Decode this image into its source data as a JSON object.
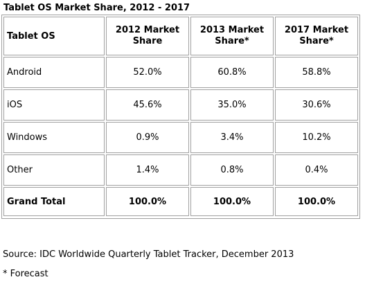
{
  "title": "Tablet OS Market Share, 2012 - 2017",
  "table": {
    "headers": [
      "Tablet OS",
      "2012 Market Share",
      "2013 Market Share*",
      "2017 Market Share*"
    ],
    "rows": [
      [
        "Android",
        "52.0%",
        "60.8%",
        "58.8%"
      ],
      [
        "iOS",
        "45.6%",
        "35.0%",
        "30.6%"
      ],
      [
        "Windows",
        "0.9%",
        "3.4%",
        "10.2%"
      ],
      [
        "Other",
        "1.4%",
        "0.8%",
        "0.4%"
      ],
      [
        "Grand Total",
        "100.0%",
        "100.0%",
        "100.0%"
      ]
    ]
  },
  "source": "Source: IDC Worldwide Quarterly Tablet Tracker, December 2013",
  "footnote": "* Forecast"
}
